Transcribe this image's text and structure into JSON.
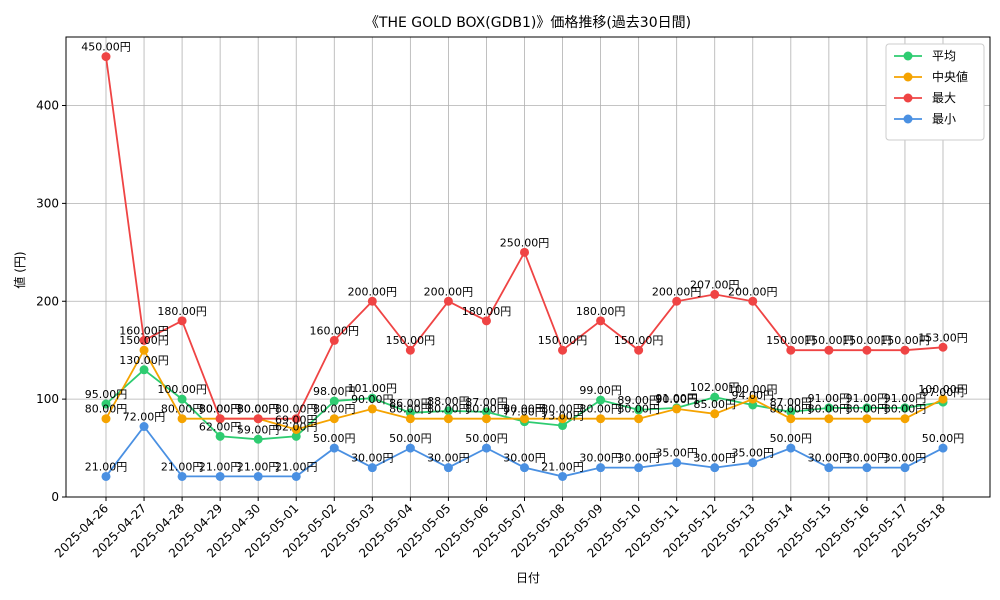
{
  "chart_data": {
    "type": "line",
    "title": "《THE GOLD BOX(GDB1)》価格推移(過去30日間)",
    "xlabel": "日付",
    "ylabel": "値 (円)",
    "ylim": [
      0,
      470
    ],
    "yticks": [
      0,
      100,
      200,
      300,
      400
    ],
    "grid": true,
    "legend_position": "top-right",
    "value_suffix": "円",
    "categories": [
      "2025-04-26",
      "2025-04-27",
      "2025-04-28",
      "2025-04-29",
      "2025-04-30",
      "2025-05-01",
      "2025-05-02",
      "2025-05-03",
      "2025-05-04",
      "2025-05-05",
      "2025-05-06",
      "2025-05-07",
      "2025-05-08",
      "2025-05-09",
      "2025-05-10",
      "2025-05-11",
      "2025-05-12",
      "2025-05-13",
      "2025-05-14",
      "2025-05-15",
      "2025-05-16",
      "2025-05-17",
      "2025-05-18"
    ],
    "series": [
      {
        "name": "平均",
        "color": "#2ecc71",
        "values": [
          95,
          130,
          100,
          62,
          59,
          62,
          98,
          101,
          86,
          88,
          87,
          77,
          73,
          99,
          89,
          91,
          102,
          94,
          87,
          91,
          91,
          91,
          97
        ]
      },
      {
        "name": "中央値",
        "color": "#f5a300",
        "values": [
          80,
          150,
          80,
          80,
          80,
          69,
          80,
          90,
          80,
          80,
          80,
          80,
          80,
          80,
          80,
          90,
          85,
          100,
          80,
          80,
          80,
          80,
          100
        ]
      },
      {
        "name": "最大",
        "color": "#ef4444",
        "values": [
          450,
          160,
          180,
          80,
          80,
          80,
          160,
          200,
          150,
          200,
          180,
          250,
          150,
          180,
          150,
          200,
          207,
          200,
          150,
          150,
          150,
          150,
          153
        ]
      },
      {
        "name": "最小",
        "color": "#4a90e2",
        "values": [
          21,
          72,
          21,
          21,
          21,
          21,
          50,
          30,
          50,
          30,
          50,
          30,
          21,
          30,
          30,
          35,
          30,
          35,
          50,
          30,
          30,
          30,
          50
        ]
      }
    ]
  }
}
